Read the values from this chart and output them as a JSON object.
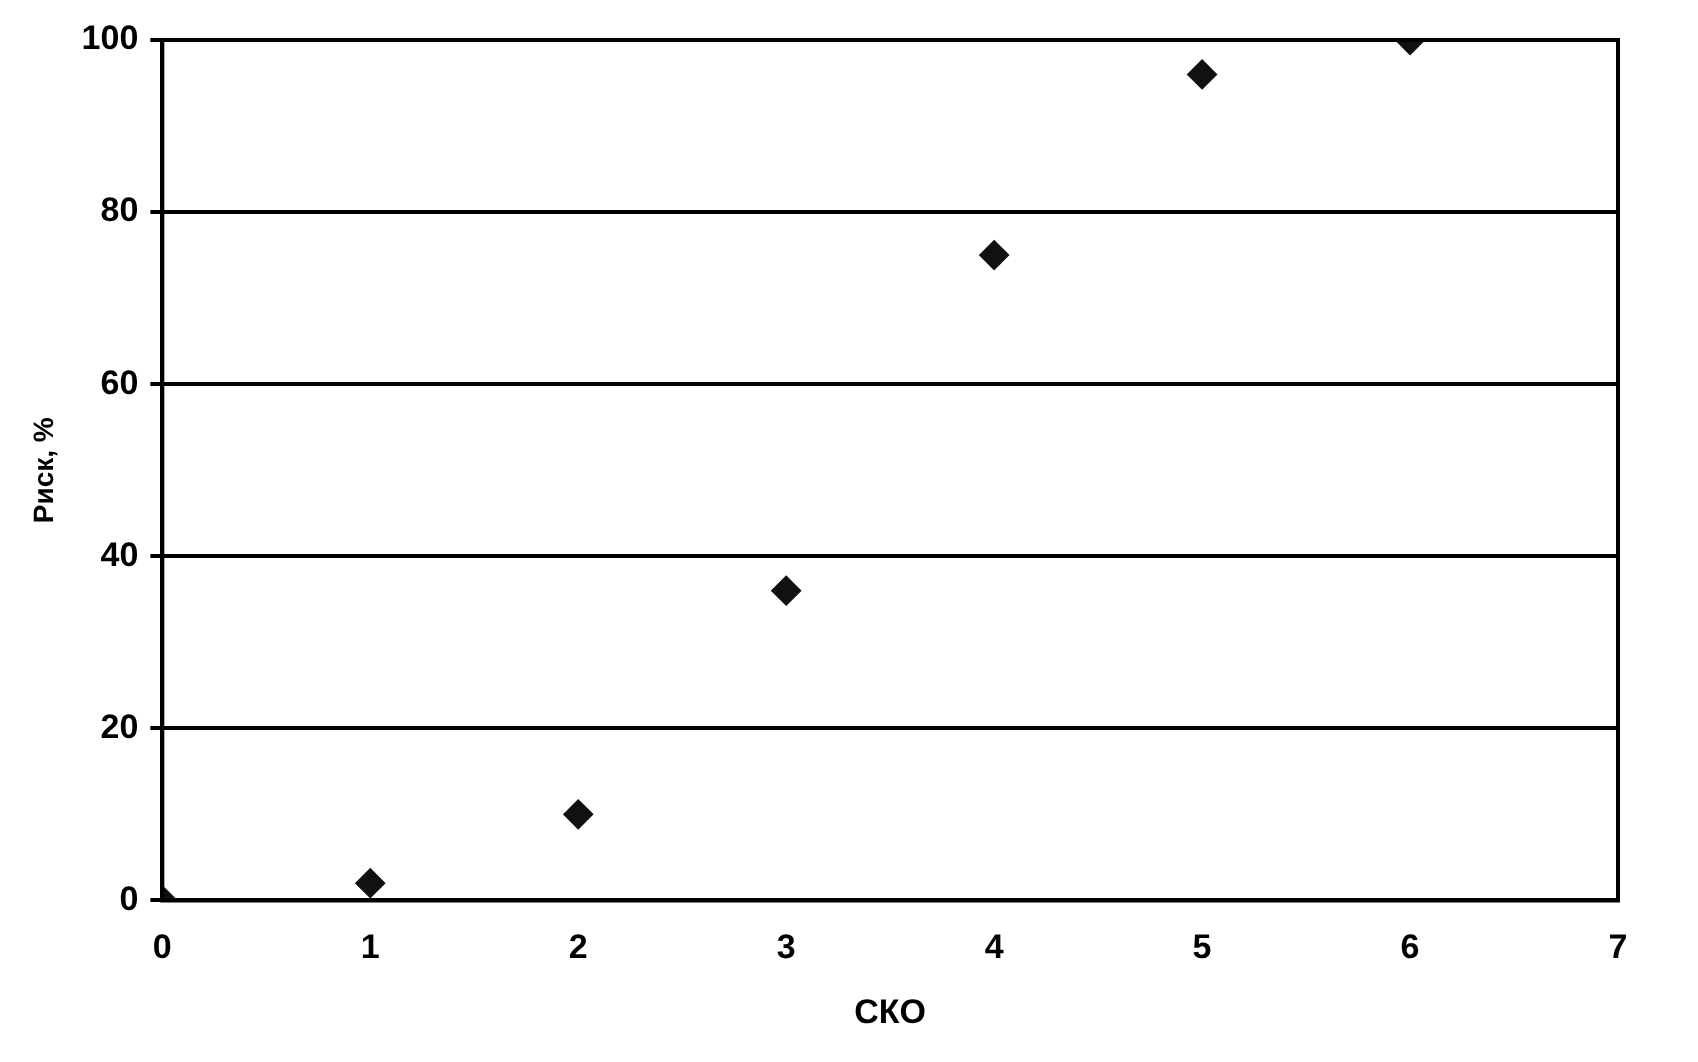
{
  "chart_data": {
    "type": "scatter",
    "xlabel": "СКО",
    "ylabel": "Риск, %",
    "x": [
      0,
      1,
      2,
      3,
      4,
      5,
      6
    ],
    "series": [
      {
        "color": "#111111",
        "values": [
          0,
          2,
          10,
          36,
          75,
          96,
          100
        ]
      }
    ],
    "xlim": [
      0,
      7
    ],
    "xticks": [
      0,
      1,
      2,
      3,
      4,
      5,
      6,
      7
    ],
    "ylim": [
      0,
      100
    ],
    "yticks": [
      0,
      20,
      40,
      60,
      80,
      100
    ],
    "grid": "y",
    "legend": false,
    "marker": "diamond"
  }
}
